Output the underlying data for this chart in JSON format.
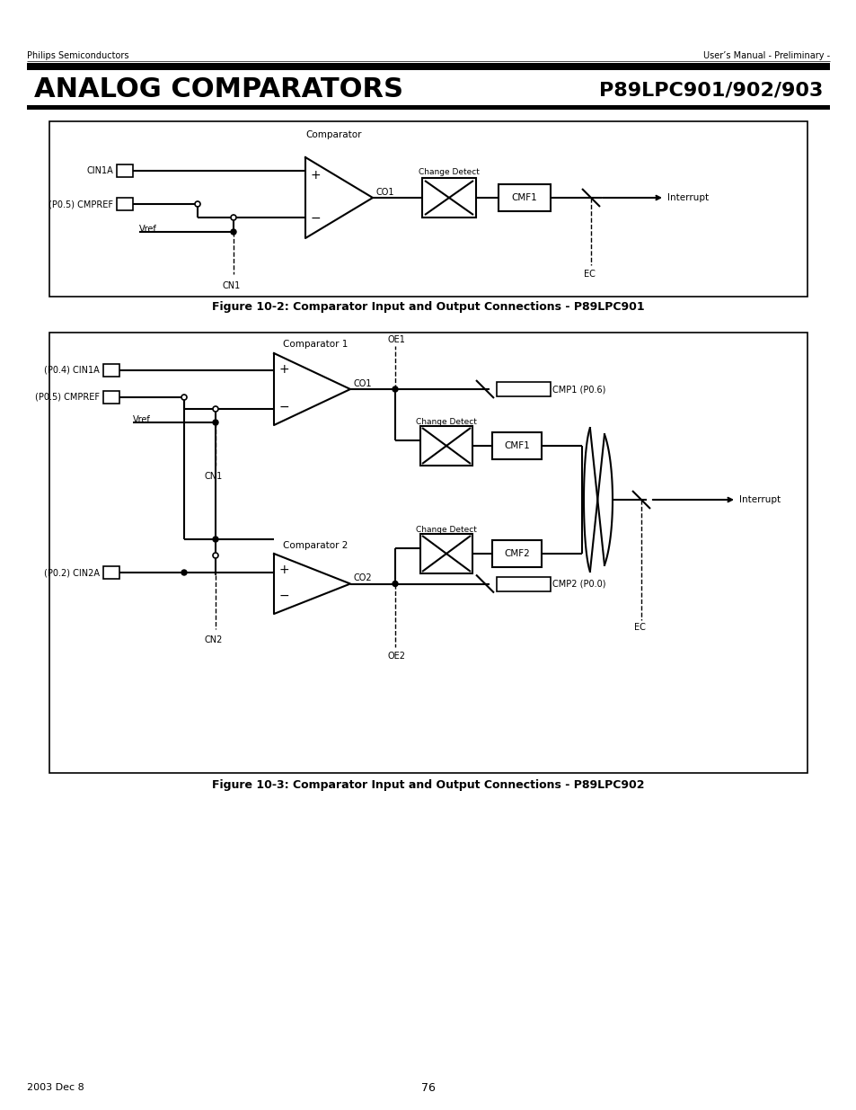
{
  "title_left": "Philips Semiconductors",
  "title_right": "User’s Manual - Preliminary -",
  "heading": "ANALOG COMPARATORS",
  "heading_right": "P89LPC901/902/903",
  "fig1_caption": "Figure 10-2: Comparator Input and Output Connections - P89LPC901",
  "fig2_caption": "Figure 10-3: Comparator Input and Output Connections - P89LPC902",
  "footer_left": "2003 Dec 8",
  "footer_center": "76",
  "bg_color": "#ffffff"
}
